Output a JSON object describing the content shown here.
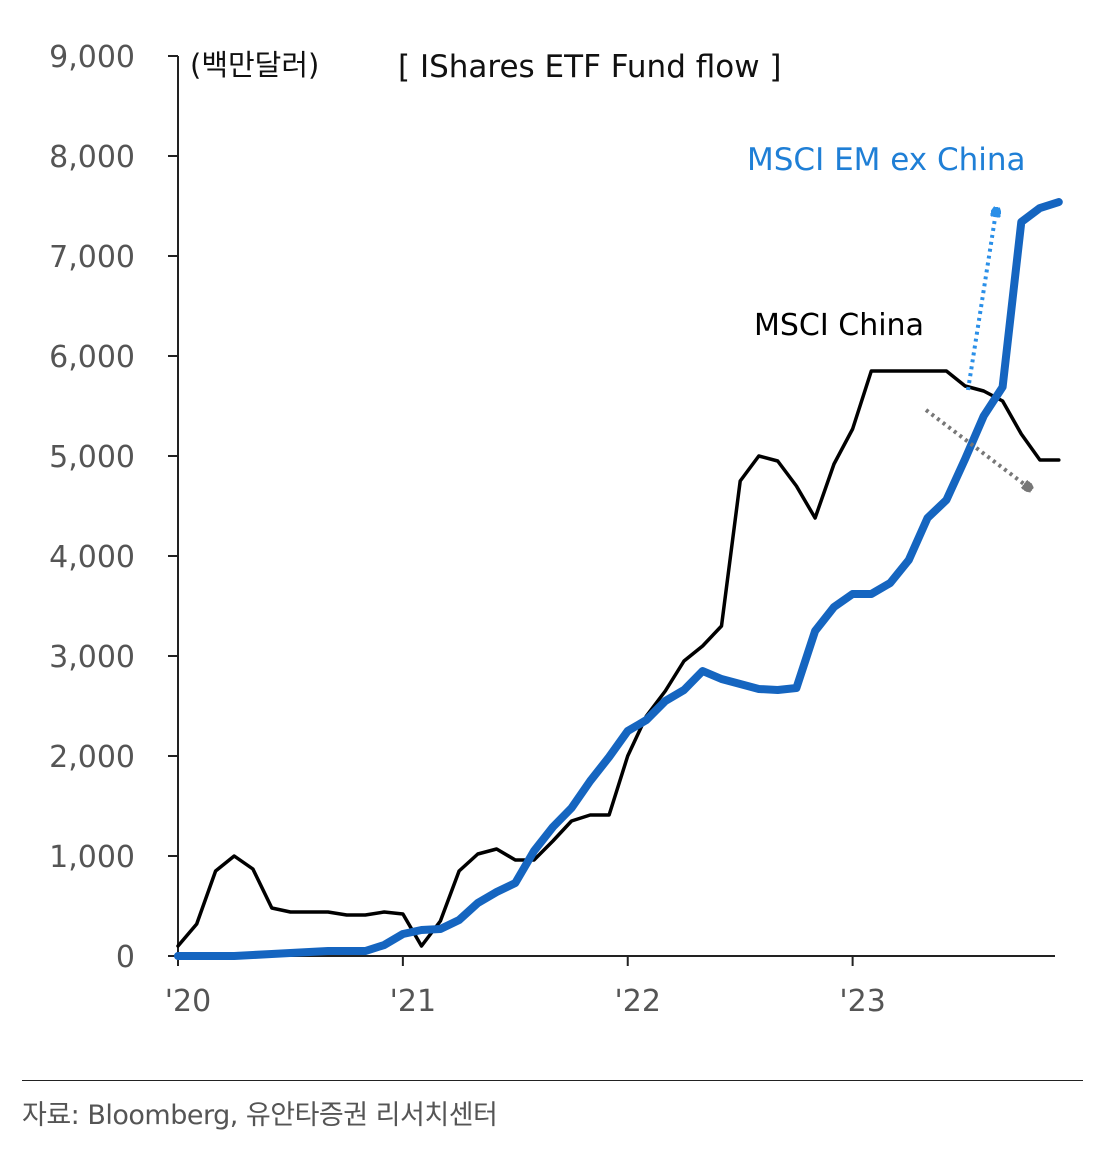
{
  "chart_data": {
    "type": "line",
    "title": "[ IShares ETF Fund flow ]",
    "unit_label": "(백만달러)",
    "ylim": [
      0,
      9000
    ],
    "yticks": [
      "9,000",
      "8,000",
      "7,000",
      "6,000",
      "5,000",
      "4,000",
      "3,000",
      "2,000",
      "1,000",
      "0"
    ],
    "xticks": [
      "'20",
      "'21",
      "'22",
      "'23"
    ],
    "grid": false,
    "series": [
      {
        "name": "MSCI China",
        "color": "#000000",
        "x": [
          2020.0,
          2020.083,
          2020.167,
          2020.25,
          2020.333,
          2020.417,
          2020.5,
          2020.583,
          2020.667,
          2020.75,
          2020.833,
          2020.917,
          2021.0,
          2021.083,
          2021.167,
          2021.25,
          2021.333,
          2021.417,
          2021.5,
          2021.583,
          2021.667,
          2021.75,
          2021.833,
          2021.917,
          2022.0,
          2022.083,
          2022.167,
          2022.25,
          2022.333,
          2022.417,
          2022.5,
          2022.583,
          2022.667,
          2022.75,
          2022.833,
          2022.917,
          2023.0,
          2023.083,
          2023.167,
          2023.25,
          2023.333,
          2023.417,
          2023.5,
          2023.583,
          2023.667,
          2023.75,
          2023.833,
          2023.917
        ],
        "y": [
          100,
          320,
          850,
          1000,
          870,
          480,
          440,
          440,
          440,
          410,
          410,
          440,
          420,
          100,
          350,
          850,
          1020,
          1070,
          960,
          960,
          1150,
          1350,
          1410,
          1410,
          2000,
          2400,
          2650,
          2950,
          3100,
          3300,
          4750,
          5000,
          4950,
          4700,
          4380,
          4920,
          5270,
          5850,
          5850,
          5850,
          5850,
          5850,
          5700,
          5650,
          5550,
          5220,
          4960,
          4960
        ]
      },
      {
        "name": "MSCI EM ex China",
        "color": "#1565c0",
        "x": [
          2020.0,
          2020.083,
          2020.167,
          2020.25,
          2020.333,
          2020.417,
          2020.5,
          2020.583,
          2020.667,
          2020.75,
          2020.833,
          2020.917,
          2021.0,
          2021.083,
          2021.167,
          2021.25,
          2021.333,
          2021.417,
          2021.5,
          2021.583,
          2021.667,
          2021.75,
          2021.833,
          2021.917,
          2022.0,
          2022.083,
          2022.167,
          2022.25,
          2022.333,
          2022.417,
          2022.5,
          2022.583,
          2022.667,
          2022.75,
          2022.833,
          2022.917,
          2023.0,
          2023.083,
          2023.167,
          2023.25,
          2023.333,
          2023.417,
          2023.5,
          2023.583,
          2023.667,
          2023.75,
          2023.833,
          2023.917
        ],
        "y": [
          0,
          0,
          0,
          0,
          10,
          20,
          30,
          40,
          50,
          50,
          50,
          110,
          220,
          260,
          270,
          360,
          530,
          640,
          730,
          1050,
          1290,
          1480,
          1750,
          1990,
          2250,
          2360,
          2550,
          2660,
          2850,
          2770,
          2720,
          2670,
          2660,
          2680,
          3250,
          3490,
          3620,
          3620,
          3730,
          3960,
          4380,
          4560,
          4970,
          5400,
          5690,
          7340,
          7480,
          7540
        ]
      }
    ],
    "annotations": [
      {
        "text": "MSCI EM ex China",
        "color": "#1f7fd6"
      },
      {
        "text": "MSCI China",
        "color": "#000000"
      }
    ]
  },
  "source_text": "자료: Bloomberg, 유안타증권 리서치센터"
}
